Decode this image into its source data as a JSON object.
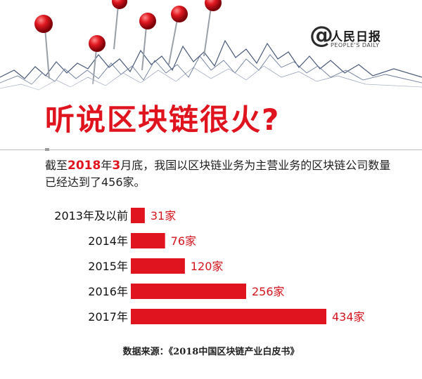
{
  "brand": {
    "at_symbol": "@",
    "name_cn": "人民日报",
    "name_en": "PEOPLE'S DAILY"
  },
  "title": "听说区块链很火?",
  "intro": {
    "p1": "截至",
    "year": "2018",
    "p2": "年",
    "month": "3",
    "p3": "月底，我国以区块链业务为主营业务的区块链公司数量已经达到了456家。"
  },
  "source": "数据来源：《2018中国区块链产业白皮书》",
  "colors": {
    "accent": "#e0141e",
    "bar": "#e0141e",
    "label_year": "#111111",
    "label_value": "#d4141c"
  },
  "chart_data": {
    "type": "bar",
    "orientation": "horizontal",
    "title": "",
    "xlabel": "",
    "ylabel": "",
    "categories": [
      "2013年及以前",
      "2014年",
      "2015年",
      "2016年",
      "2017年"
    ],
    "values": [
      31,
      76,
      120,
      256,
      434
    ],
    "value_labels": [
      "31家",
      "76家",
      "120家",
      "256家",
      "434家"
    ],
    "xlim": [
      0,
      434
    ],
    "grid": false,
    "legend": "none"
  }
}
